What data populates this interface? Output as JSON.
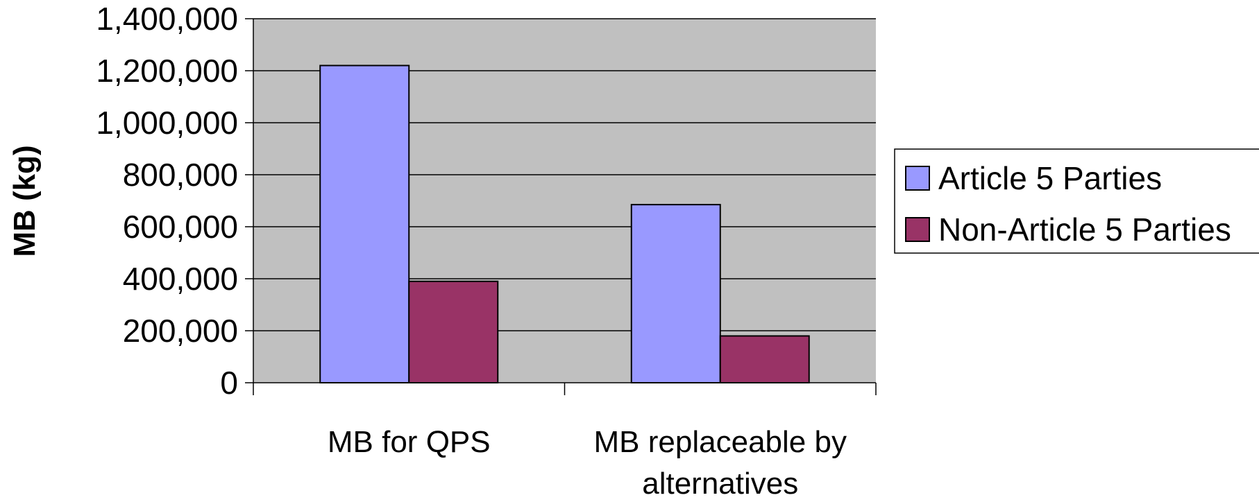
{
  "chart_data": {
    "type": "bar",
    "title": "",
    "ylabel": "MB (kg)",
    "xlabel": "",
    "categories": [
      [
        "MB for QPS"
      ],
      [
        "MB replaceable by",
        "alternatives"
      ]
    ],
    "series": [
      {
        "name": "Article 5 Parties",
        "color": "#9999ff",
        "values": [
          1220000,
          685000
        ]
      },
      {
        "name": "Non-Article 5 Parties",
        "color": "#993366",
        "values": [
          390000,
          180000
        ]
      }
    ],
    "ylim": [
      0,
      1400000
    ],
    "yticks": [
      0,
      200000,
      400000,
      600000,
      800000,
      1000000,
      1200000,
      1400000
    ],
    "ytick_labels": [
      "0",
      "200,000",
      "400,000",
      "600,000",
      "800,000",
      "1,000,000",
      "1,200,000",
      "1,400,000"
    ],
    "grid": true,
    "plot_background": "#c0c0c0",
    "legend_position": "right"
  }
}
